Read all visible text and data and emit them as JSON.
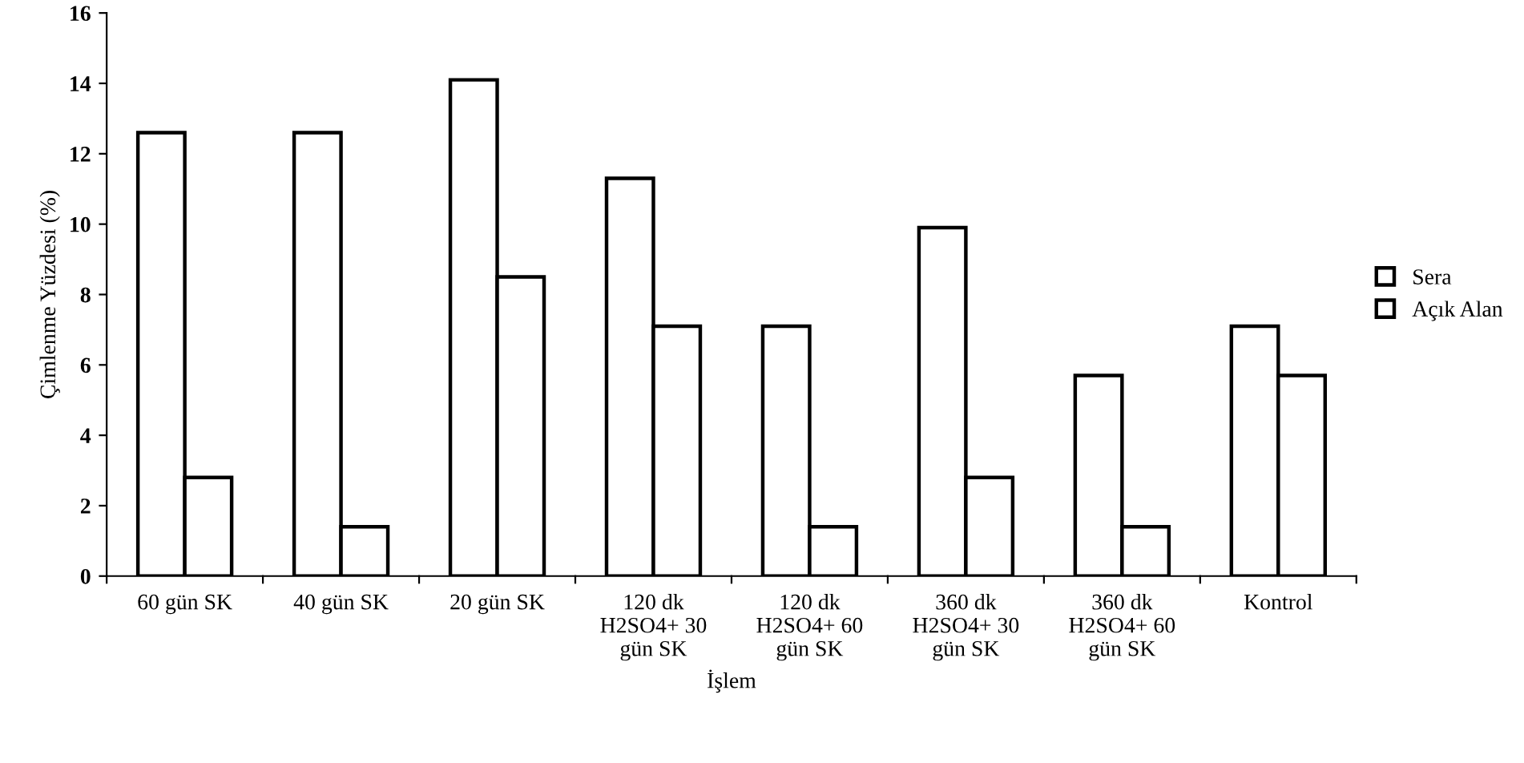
{
  "chart_data": {
    "type": "bar",
    "xlabel": "İşlem",
    "ylabel": "Çimlenme Yüzdesi (%)",
    "categories": [
      "60 gün SK",
      "40 gün SK",
      "20 gün SK",
      "120 dk\nH2SO4+ 30\ngün SK",
      "120 dk\nH2SO4+ 60\ngün SK",
      "360 dk\nH2SO4+ 30\ngün SK",
      "360 dk\nH2SO4+ 60\ngün SK",
      "Kontrol"
    ],
    "series": [
      {
        "name": "Sera",
        "color": "#ffffff",
        "values": [
          12.6,
          12.6,
          14.1,
          11.3,
          7.1,
          9.9,
          5.7,
          7.1
        ]
      },
      {
        "name": "Açık Alan",
        "color": "#ffffff",
        "values": [
          2.8,
          1.4,
          8.5,
          7.1,
          1.4,
          2.8,
          1.4,
          5.7
        ]
      }
    ],
    "ylim": [
      0,
      16
    ],
    "yticks": [
      0,
      2,
      4,
      6,
      8,
      10,
      12,
      14,
      16
    ],
    "grid": false,
    "legend": "right"
  }
}
